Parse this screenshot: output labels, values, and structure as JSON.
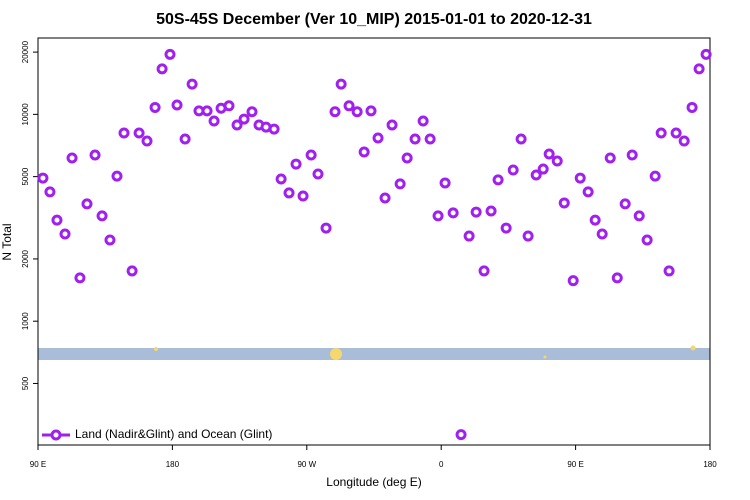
{
  "chart_data": {
    "type": "scatter",
    "title": "50S-45S December (Ver 10_MIP)   2015-01-01 to 2020-12-31",
    "x_label": "Longitude (deg E)",
    "y_label": "N Total",
    "xlim": [
      90,
      540
    ],
    "ylim": [
      252,
      23400
    ],
    "ylog": true,
    "xticks": [
      {
        "value": 90,
        "label": "90 E"
      },
      180,
      {
        "value": 270,
        "label": "90 W"
      },
      {
        "value": 360,
        "label": "0"
      },
      {
        "value": 450,
        "label": "90 E"
      },
      {
        "value": 540,
        "label": "180"
      }
    ],
    "yticks": [
      500,
      1000,
      2000,
      5000,
      10000,
      20000
    ],
    "legend_position": "lower left",
    "series": [
      {
        "name": "Land (Nadir&Glint) and Ocean (Glint)",
        "color": "#a020f0",
        "x": [
          93.3,
          98.0,
          102.7,
          108.1,
          112.8,
          118.1,
          122.8,
          128.2,
          132.9,
          138.2,
          142.9,
          147.6,
          153.0,
          157.7,
          163.0,
          168.4,
          173.1,
          178.4,
          183.1,
          188.5,
          193.2,
          197.8,
          203.2,
          207.9,
          212.6,
          217.9,
          223.3,
          228.0,
          233.3,
          238.0,
          242.7,
          248.1,
          252.8,
          258.1,
          262.8,
          267.5,
          272.9,
          277.5,
          282.9,
          288.9,
          293.0,
          298.3,
          303.7,
          308.4,
          313.0,
          317.7,
          322.4,
          327.1,
          332.5,
          337.2,
          342.5,
          347.9,
          352.6,
          357.9,
          362.6,
          368.0,
          373.3,
          378.7,
          383.4,
          388.7,
          393.4,
          398.1,
          403.5,
          408.2,
          413.5,
          418.2,
          423.6,
          428.3,
          432.3,
          437.7,
          442.4,
          448.4,
          453.1,
          458.4,
          463.1,
          467.8,
          473.2,
          477.9,
          483.2,
          487.9,
          492.6,
          497.9,
          503.3,
          507.3,
          512.6,
          517.3,
          522.7,
          528.0,
          532.7,
          537.4
        ],
        "values": [
          4920,
          4220,
          3080,
          2640,
          6150,
          1620,
          3690,
          6360,
          3230,
          2470,
          5030,
          8130,
          1750,
          8130,
          7430,
          10800,
          16600,
          19500,
          11100,
          7600,
          14000,
          10400,
          10400,
          9290,
          10700,
          11000,
          8880,
          9490,
          10300,
          8880,
          8680,
          8490,
          4870,
          4170,
          5750,
          4030,
          6360,
          5150,
          2820,
          10300,
          14000,
          11000,
          10300,
          6580,
          10400,
          7690,
          3940,
          8880,
          4610,
          6150,
          7600,
          9290,
          7600,
          3230,
          4660,
          3340,
          283,
          2580,
          3370,
          1750,
          3410,
          4820,
          2820,
          5380,
          7600,
          2580,
          5090,
          5440,
          6430,
          5950,
          3730,
          1570,
          4920,
          4220,
          3080,
          2640,
          6150,
          1620,
          3690,
          6360,
          3230,
          2470,
          5030,
          8130,
          1750,
          8130,
          7430,
          10800,
          16600,
          19500
        ]
      }
    ]
  }
}
